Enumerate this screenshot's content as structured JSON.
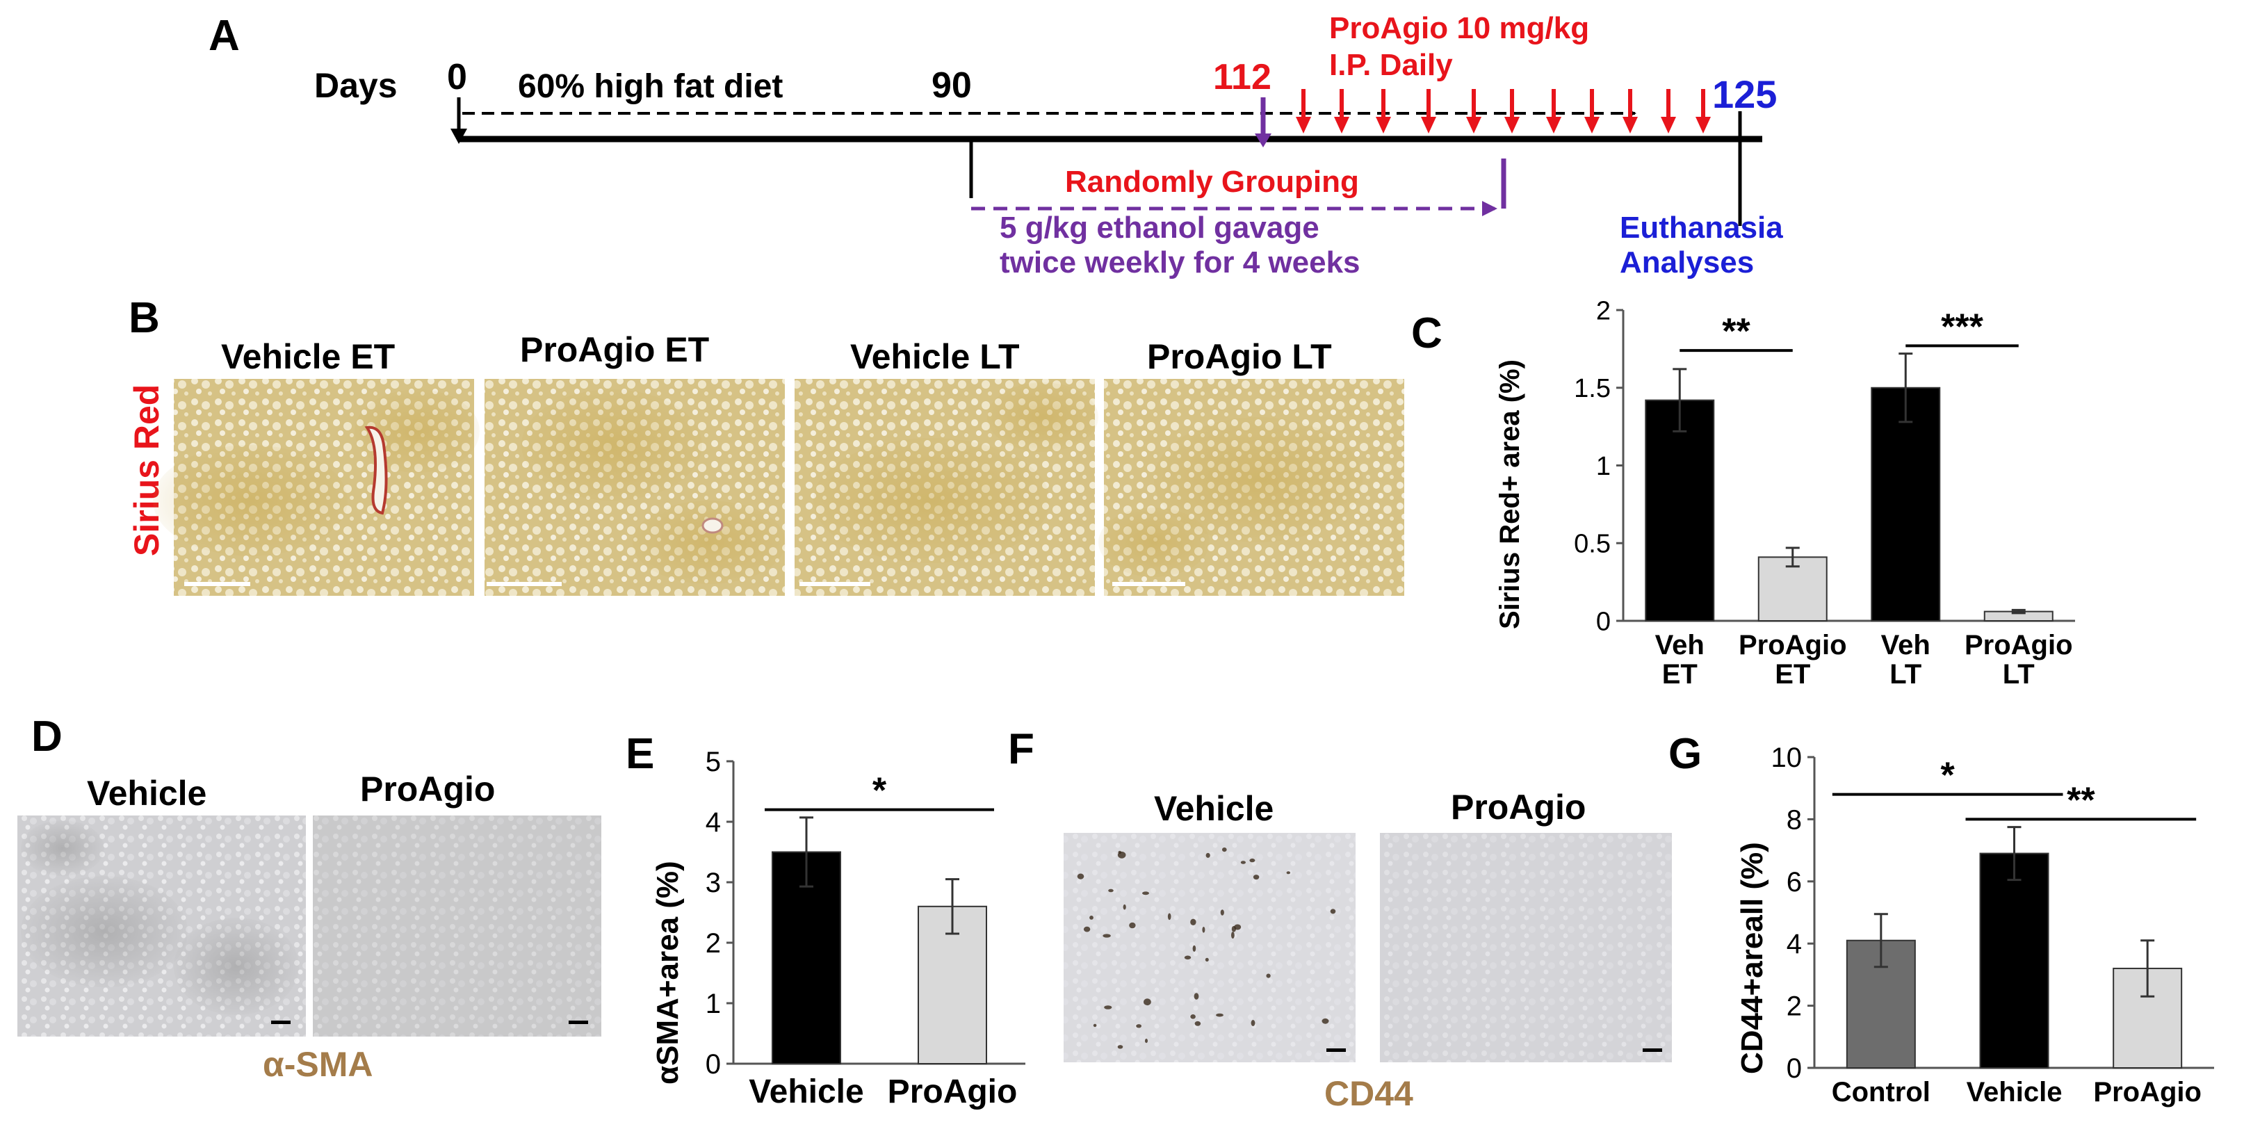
{
  "figure": {
    "panel_labels": {
      "A": "A",
      "B": "B",
      "C": "C",
      "D": "D",
      "E": "E",
      "F": "F",
      "G": "G"
    },
    "timeline": {
      "days_label": "Days",
      "day_0": "0",
      "day_90": "90",
      "day_112": "112",
      "day_125": "125",
      "diet_label": "60% high fat diet",
      "proagio_dose_line1": "ProAgio 10 mg/kg",
      "proagio_dose_line2": "I.P. Daily",
      "grouping_label": "Randomly Grouping",
      "ethanol_line1": "5 g/kg ethanol gavage",
      "ethanol_line2": "twice weekly for 4 weeks",
      "euthanasia_line1": "Euthanasia",
      "euthanasia_line2": "Analyses"
    },
    "panel_b": {
      "stain_label": "Sirius Red",
      "image_titles": [
        "Vehicle ET",
        "ProAgio ET",
        "Vehicle LT",
        "ProAgio LT"
      ]
    },
    "panel_d": {
      "image_titles": [
        "Vehicle",
        "ProAgio"
      ],
      "stain_label": "α-SMA"
    },
    "panel_f": {
      "image_titles": [
        "Vehicle",
        "ProAgio"
      ],
      "stain_label": "CD44"
    },
    "colors": {
      "red": "#e8141b",
      "blue": "#1b1fd6",
      "purple": "#7030a0",
      "tan": "#a47c4a",
      "bar_black": "#000000",
      "bar_light": "#d9d9d9",
      "bar_dark_gray": "#6d6d6d",
      "sirius_tissue": "#d8c48a",
      "ihc_tissue": "#c8c8c8"
    }
  },
  "chart_data": [
    {
      "type": "bar",
      "panel": "C",
      "categories": [
        "Veh\nET",
        "ProAgio\nET",
        "Veh\nLT",
        "ProAgio\nLT"
      ],
      "values": [
        1.42,
        0.41,
        1.5,
        0.06
      ],
      "errors": [
        0.2,
        0.06,
        0.22,
        0.01
      ],
      "ylabel": "Sirius Red+ area (%)",
      "ylim": [
        0,
        2
      ],
      "yticks": [
        "0",
        "0.5",
        "1",
        "1.5",
        "2"
      ],
      "significance": [
        {
          "from": 0,
          "to": 1,
          "label": "**"
        },
        {
          "from": 2,
          "to": 3,
          "label": "***"
        }
      ]
    },
    {
      "type": "bar",
      "panel": "E",
      "categories": [
        "Vehicle",
        "ProAgio"
      ],
      "values": [
        3.5,
        2.6
      ],
      "errors": [
        0.57,
        0.45
      ],
      "ylabel": "αSMA+area (%)",
      "ylim": [
        0,
        5
      ],
      "yticks": [
        "0",
        "1",
        "2",
        "3",
        "4",
        "5"
      ],
      "significance": [
        {
          "from": 0,
          "to": 1,
          "label": "*"
        }
      ]
    },
    {
      "type": "bar",
      "panel": "G",
      "categories": [
        "Control",
        "Vehicle",
        "ProAgio"
      ],
      "values": [
        4.1,
        6.9,
        3.2
      ],
      "errors": [
        0.85,
        0.85,
        0.9
      ],
      "ylabel": "CD44+areall (%)",
      "ylim": [
        0,
        10
      ],
      "yticks": [
        "0",
        "2",
        "4",
        "6",
        "8",
        "10"
      ],
      "significance": [
        {
          "from": 0,
          "to": 1,
          "label": "*"
        },
        {
          "from": 1,
          "to": 2,
          "label": "**"
        }
      ]
    }
  ]
}
